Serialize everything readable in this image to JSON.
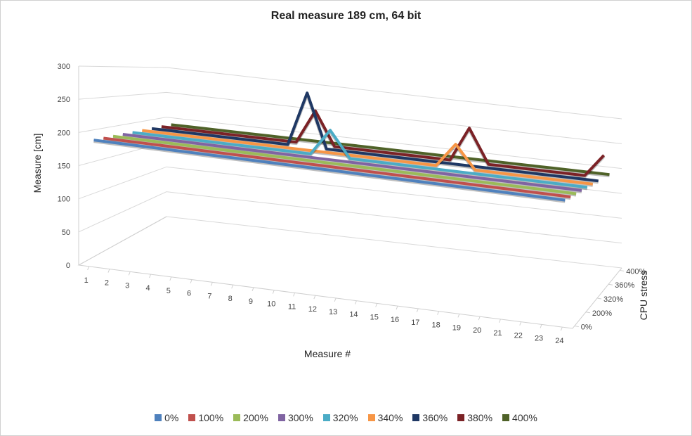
{
  "chart_data": {
    "type": "line",
    "title": "Real measure 189 cm, 64 bit",
    "xlabel": "Measure #",
    "ylabel": "Measure [cm]",
    "zlabel": "CPU stress",
    "ylim": [
      0,
      300
    ],
    "y_ticks": [
      "0",
      "50",
      "100",
      "150",
      "200",
      "250",
      "300"
    ],
    "x": [
      1,
      2,
      3,
      4,
      5,
      6,
      7,
      8,
      9,
      10,
      11,
      12,
      13,
      14,
      15,
      16,
      17,
      18,
      19,
      20,
      21,
      22,
      23,
      24
    ],
    "z_ticks": [
      "0%",
      "200%",
      "320%",
      "360%",
      "400%"
    ],
    "grid": true,
    "legend_position": "bottom",
    "series": [
      {
        "name": "0%",
        "color": "#4F81BD",
        "values": [
          189,
          189,
          189,
          189,
          189,
          189,
          189,
          189,
          189,
          189,
          189,
          189,
          189,
          189,
          189,
          189,
          189,
          189,
          189,
          189,
          189,
          189,
          189,
          189
        ]
      },
      {
        "name": "100%",
        "color": "#C0504D",
        "values": [
          189,
          189,
          189,
          189,
          189,
          189,
          189,
          189,
          189,
          189,
          189,
          189,
          189,
          189,
          189,
          189,
          189,
          189,
          189,
          189,
          189,
          189,
          189,
          189
        ]
      },
      {
        "name": "200%",
        "color": "#9BBB59",
        "values": [
          189,
          189,
          189,
          189,
          189,
          189,
          189,
          189,
          189,
          189,
          189,
          189,
          189,
          189,
          189,
          189,
          189,
          189,
          189,
          189,
          189,
          189,
          189,
          189
        ]
      },
      {
        "name": "300%",
        "color": "#8064A2",
        "values": [
          189,
          189,
          189,
          189,
          189,
          189,
          189,
          189,
          189,
          189,
          189,
          189,
          189,
          189,
          189,
          189,
          189,
          189,
          189,
          189,
          189,
          189,
          189,
          189
        ]
      },
      {
        "name": "320%",
        "color": "#4BACC6",
        "values": [
          189,
          189,
          189,
          189,
          189,
          189,
          189,
          189,
          189,
          189,
          234,
          189,
          189,
          189,
          189,
          189,
          189,
          189,
          189,
          189,
          189,
          189,
          189,
          189
        ]
      },
      {
        "name": "340%",
        "color": "#F79646",
        "values": [
          189,
          189,
          189,
          189,
          189,
          189,
          189,
          189,
          189,
          189,
          189,
          189,
          189,
          189,
          189,
          189,
          231,
          189,
          189,
          189,
          189,
          189,
          189,
          189
        ]
      },
      {
        "name": "360%",
        "color": "#1F3864",
        "values": [
          189,
          189,
          189,
          189,
          189,
          189,
          189,
          189,
          288,
          189,
          189,
          189,
          189,
          189,
          189,
          189,
          189,
          189,
          189,
          189,
          189,
          189,
          189,
          189
        ]
      },
      {
        "name": "380%",
        "color": "#7B2226",
        "values": [
          189,
          189,
          189,
          189,
          189,
          189,
          189,
          189,
          253,
          189,
          189,
          189,
          189,
          189,
          189,
          189,
          254,
          189,
          189,
          189,
          189,
          189,
          189,
          232
        ]
      },
      {
        "name": "400%",
        "color": "#4F6228",
        "values": [
          189,
          189,
          189,
          189,
          189,
          189,
          189,
          189,
          189,
          189,
          189,
          189,
          189,
          189,
          189,
          189,
          189,
          189,
          189,
          189,
          189,
          189,
          189,
          189
        ]
      }
    ]
  }
}
